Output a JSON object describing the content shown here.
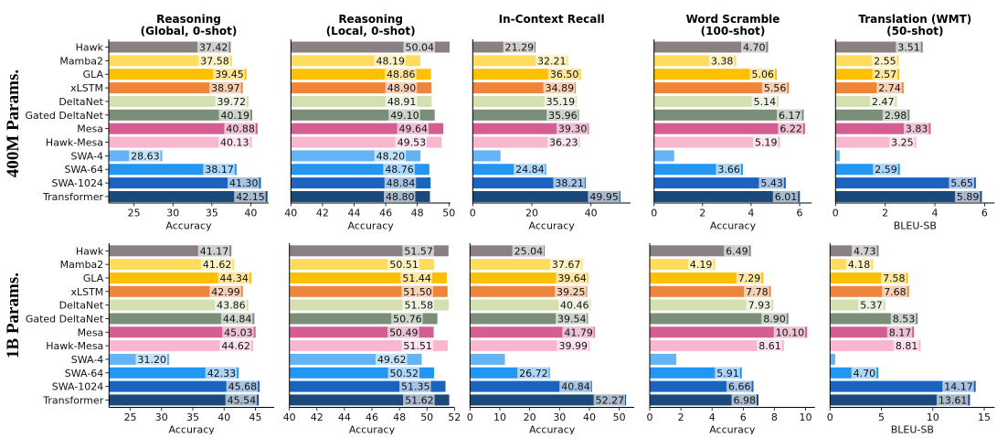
{
  "models": [
    "Hawk",
    "Mamba2",
    "GLA",
    "xLSTM",
    "DeltaNet",
    "Gated DeltaNet",
    "Mesa",
    "Hawk-Mesa",
    "SWA-4",
    "SWA-64",
    "SWA-1024",
    "Transformer"
  ],
  "colors": {
    "Hawk": "#8a8081",
    "Mamba2": "#ffdc5e",
    "GLA": "#ffc000",
    "xLSTM": "#ef853a",
    "DeltaNet": "#d5e0b1",
    "Gated DeltaNet": "#7b8e78",
    "Mesa": "#d45d92",
    "Hawk-Mesa": "#f8b6cf",
    "SWA-4": "#63b3f5",
    "SWA-64": "#2196f3",
    "SWA-1024": "#1a64bf",
    "Transformer": "#1b4a7a"
  },
  "row_labels": [
    "400M Params.",
    "1B Params."
  ],
  "chart_data": [
    {
      "type": "bar",
      "orientation": "horizontal",
      "row": "400M Params.",
      "title": "Reasoning\n(Global, 0-shot)",
      "xlabel": "Accuracy",
      "ylabel": "",
      "xlim": [
        21.75,
        42.3
      ],
      "xticks": [
        25,
        30,
        35,
        40
      ],
      "grid": false,
      "categories": [
        "Hawk",
        "Mamba2",
        "GLA",
        "xLSTM",
        "DeltaNet",
        "Gated DeltaNet",
        "Mesa",
        "Hawk-Mesa",
        "SWA-4",
        "SWA-64",
        "SWA-1024",
        "Transformer"
      ],
      "values": [
        37.42,
        37.58,
        39.45,
        38.97,
        39.72,
        40.19,
        40.88,
        40.13,
        28.63,
        38.17,
        41.3,
        42.15
      ],
      "labels": [
        "37.42",
        "37.58",
        "39.45",
        "38.97",
        "39.72",
        "40.19",
        "40.88",
        "40.13",
        "28.63",
        "38.17",
        "41.30",
        "42.15"
      ]
    },
    {
      "type": "bar",
      "orientation": "horizontal",
      "row": "400M Params.",
      "title": "Reasoning\n(Local, 0-shot)",
      "xlabel": "Accuracy",
      "ylabel": "",
      "xlim": [
        40,
        50.1
      ],
      "xticks": [
        40,
        42,
        44,
        46,
        48,
        50
      ],
      "grid": false,
      "categories": [
        "Hawk",
        "Mamba2",
        "GLA",
        "xLSTM",
        "DeltaNet",
        "Gated DeltaNet",
        "Mesa",
        "Hawk-Mesa",
        "SWA-4",
        "SWA-64",
        "SWA-1024",
        "Transformer"
      ],
      "values": [
        50.04,
        48.19,
        48.86,
        48.9,
        48.91,
        49.1,
        49.64,
        49.53,
        48.2,
        48.76,
        48.84,
        48.8
      ],
      "labels": [
        "50.04",
        "48.19",
        "48.86",
        "48.90",
        "48.91",
        "49.10",
        "49.64",
        "49.53",
        "48.20",
        "48.76",
        "48.84",
        "48.80"
      ]
    },
    {
      "type": "bar",
      "orientation": "horizontal",
      "row": "400M Params.",
      "title": "In-Context Recall",
      "xlabel": "Accuracy",
      "ylabel": "",
      "xlim": [
        0,
        53.4
      ],
      "xticks": [
        0,
        20,
        40
      ],
      "grid": false,
      "categories": [
        "Hawk",
        "Mamba2",
        "GLA",
        "xLSTM",
        "DeltaNet",
        "Gated DeltaNet",
        "Mesa",
        "Hawk-Mesa",
        "SWA-4",
        "SWA-64",
        "SWA-1024",
        "Transformer"
      ],
      "values": [
        21.29,
        32.21,
        36.5,
        34.89,
        35.19,
        35.96,
        39.3,
        36.23,
        9.4,
        24.84,
        38.21,
        49.95
      ],
      "labels": [
        "21.29",
        "32.21",
        "36.50",
        "34.89",
        "35.19",
        "35.96",
        "39.30",
        "36.23",
        "",
        "24.84",
        "38.21",
        "49.95"
      ]
    },
    {
      "type": "bar",
      "orientation": "horizontal",
      "row": "400M Params.",
      "title": "Word Scramble\n(100-shot)",
      "xlabel": "Accuracy",
      "ylabel": "",
      "xlim": [
        0,
        6.5
      ],
      "xticks": [
        0,
        2,
        4,
        6
      ],
      "grid": false,
      "categories": [
        "Hawk",
        "Mamba2",
        "GLA",
        "xLSTM",
        "DeltaNet",
        "Gated DeltaNet",
        "Mesa",
        "Hawk-Mesa",
        "SWA-4",
        "SWA-64",
        "SWA-1024",
        "Transformer"
      ],
      "values": [
        4.7,
        3.38,
        5.06,
        5.56,
        5.14,
        6.17,
        6.22,
        5.19,
        0.83,
        3.66,
        5.43,
        6.01
      ],
      "labels": [
        "4.70",
        "3.38",
        "5.06",
        "5.56",
        "5.14",
        "6.17",
        "6.22",
        "5.19",
        "",
        "3.66",
        "5.43",
        "6.01"
      ]
    },
    {
      "type": "bar",
      "orientation": "horizontal",
      "row": "400M Params.",
      "title": "Translation (WMT)\n(50-shot)",
      "xlabel": "BLEU-SB",
      "ylabel": "",
      "xlim": [
        0,
        6.4
      ],
      "xticks": [
        0,
        2,
        4,
        6
      ],
      "grid": false,
      "categories": [
        "Hawk",
        "Mamba2",
        "GLA",
        "xLSTM",
        "DeltaNet",
        "Gated DeltaNet",
        "Mesa",
        "Hawk-Mesa",
        "SWA-4",
        "SWA-64",
        "SWA-1024",
        "Transformer"
      ],
      "values": [
        3.51,
        2.55,
        2.57,
        2.74,
        2.47,
        2.98,
        3.83,
        3.25,
        0.17,
        2.59,
        5.65,
        5.89
      ],
      "labels": [
        "3.51",
        "2.55",
        "2.57",
        "2.74",
        "2.47",
        "2.98",
        "3.83",
        "3.25",
        "",
        "2.59",
        "5.65",
        "5.89"
      ]
    },
    {
      "type": "bar",
      "orientation": "horizontal",
      "row": "1B Params.",
      "title": "",
      "xlabel": "Accuracy",
      "ylabel": "",
      "xlim": [
        21.6,
        48.0
      ],
      "xticks": [
        25,
        30,
        35,
        40,
        45
      ],
      "grid": false,
      "categories": [
        "Hawk",
        "Mamba2",
        "GLA",
        "xLSTM",
        "DeltaNet",
        "Gated DeltaNet",
        "Mesa",
        "Hawk-Mesa",
        "SWA-4",
        "SWA-64",
        "SWA-1024",
        "Transformer"
      ],
      "values": [
        41.17,
        41.62,
        44.34,
        42.99,
        43.86,
        44.84,
        45.03,
        44.62,
        31.2,
        42.33,
        45.68,
        45.54
      ],
      "labels": [
        "41.17",
        "41.62",
        "44.34",
        "42.99",
        "43.86",
        "44.84",
        "45.03",
        "44.62",
        "31.20",
        "42.33",
        "45.68",
        "45.54"
      ]
    },
    {
      "type": "bar",
      "orientation": "horizontal",
      "row": "1B Params.",
      "title": "",
      "xlabel": "Accuracy",
      "ylabel": "",
      "xlim": [
        40,
        52
      ],
      "xticks": [
        40,
        42,
        44,
        46,
        48,
        50,
        52
      ],
      "grid": false,
      "categories": [
        "Hawk",
        "Mamba2",
        "GLA",
        "xLSTM",
        "DeltaNet",
        "Gated DeltaNet",
        "Mesa",
        "Hawk-Mesa",
        "SWA-4",
        "SWA-64",
        "SWA-1024",
        "Transformer"
      ],
      "values": [
        51.57,
        50.51,
        51.44,
        51.5,
        51.58,
        50.76,
        50.49,
        51.51,
        49.62,
        50.52,
        51.35,
        51.62
      ],
      "labels": [
        "51.57",
        "50.51",
        "51.44",
        "51.50",
        "51.58",
        "50.76",
        "50.49",
        "51.51",
        "49.62",
        "50.52",
        "51.35",
        "51.62"
      ]
    },
    {
      "type": "bar",
      "orientation": "horizontal",
      "row": "1B Params.",
      "title": "",
      "xlabel": "Accuracy",
      "ylabel": "",
      "xlim": [
        0,
        55
      ],
      "xticks": [
        0,
        10,
        20,
        30,
        40,
        50
      ],
      "grid": false,
      "categories": [
        "Hawk",
        "Mamba2",
        "GLA",
        "xLSTM",
        "DeltaNet",
        "Gated DeltaNet",
        "Mesa",
        "Hawk-Mesa",
        "SWA-4",
        "SWA-64",
        "SWA-1024",
        "Transformer"
      ],
      "values": [
        25.04,
        37.67,
        39.64,
        39.25,
        40.46,
        39.54,
        41.79,
        39.99,
        11.7,
        26.72,
        40.84,
        52.27
      ],
      "labels": [
        "25.04",
        "37.67",
        "39.64",
        "39.25",
        "40.46",
        "39.54",
        "41.79",
        "39.99",
        "",
        "26.72",
        "40.84",
        "52.27"
      ]
    },
    {
      "type": "bar",
      "orientation": "horizontal",
      "row": "1B Params.",
      "title": "",
      "xlabel": "Accuracy",
      "ylabel": "",
      "xlim": [
        0,
        10.6
      ],
      "xticks": [
        0,
        2,
        4,
        6,
        8,
        10
      ],
      "grid": false,
      "categories": [
        "Hawk",
        "Mamba2",
        "GLA",
        "xLSTM",
        "DeltaNet",
        "Gated DeltaNet",
        "Mesa",
        "Hawk-Mesa",
        "SWA-4",
        "SWA-64",
        "SWA-1024",
        "Transformer"
      ],
      "values": [
        6.49,
        4.19,
        7.29,
        7.78,
        7.93,
        8.9,
        10.1,
        8.61,
        1.7,
        5.91,
        6.66,
        6.98
      ],
      "labels": [
        "6.49",
        "4.19",
        "7.29",
        "7.78",
        "7.93",
        "8.90",
        "10.10",
        "8.61",
        "",
        "5.91",
        "6.66",
        "6.98"
      ]
    },
    {
      "type": "bar",
      "orientation": "horizontal",
      "row": "1B Params.",
      "title": "",
      "xlabel": "BLEU-SB",
      "ylabel": "",
      "xlim": [
        0,
        16.0
      ],
      "xticks": [
        0,
        5,
        10,
        15
      ],
      "grid": false,
      "categories": [
        "Hawk",
        "Mamba2",
        "GLA",
        "xLSTM",
        "DeltaNet",
        "Gated DeltaNet",
        "Mesa",
        "Hawk-Mesa",
        "SWA-4",
        "SWA-64",
        "SWA-1024",
        "Transformer"
      ],
      "values": [
        4.73,
        4.18,
        7.58,
        7.68,
        5.37,
        8.53,
        8.17,
        8.81,
        0.5,
        4.7,
        14.17,
        13.61
      ],
      "labels": [
        "4.73",
        "4.18",
        "7.58",
        "7.68",
        "5.37",
        "8.53",
        "8.17",
        "8.81",
        "",
        "4.70",
        "14.17",
        "13.61"
      ]
    }
  ]
}
